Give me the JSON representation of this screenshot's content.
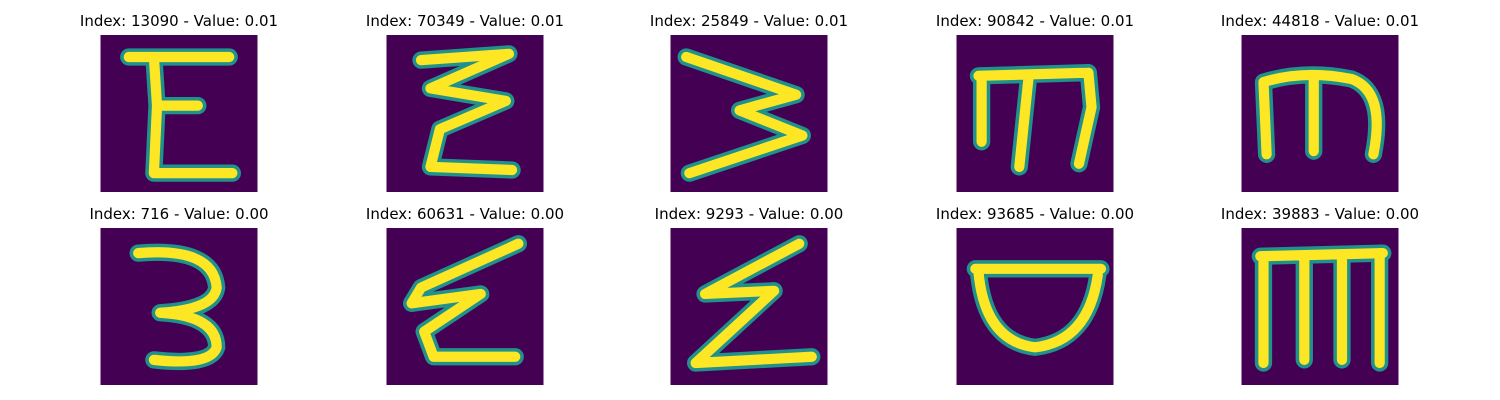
{
  "colors": {
    "background": "#440154",
    "stroke_outer": "#21918c",
    "stroke_inner": "#fde725"
  },
  "panels": [
    {
      "title": "Index: 13090 - Value: 0.01",
      "glyph": "E-curly"
    },
    {
      "title": "Index: 70349 - Value: 0.01",
      "glyph": "sigma-zigzag"
    },
    {
      "title": "Index: 25849 - Value: 0.01",
      "glyph": "sideways-W"
    },
    {
      "title": "Index: 90842 - Value: 0.01",
      "glyph": "m-shape"
    },
    {
      "title": "Index: 44818 - Value: 0.01",
      "glyph": "m-shape"
    },
    {
      "title": "Index: 716 - Value: 0.00",
      "glyph": "three"
    },
    {
      "title": "Index: 60631 - Value: 0.00",
      "glyph": "epsilon-zigzag"
    },
    {
      "title": "Index: 9293 - Value: 0.00",
      "glyph": "z-zigzag"
    },
    {
      "title": "Index: 93685 - Value: 0.00",
      "glyph": "bowl"
    },
    {
      "title": "Index: 39883 - Value: 0.00",
      "glyph": "m-frame"
    }
  ]
}
